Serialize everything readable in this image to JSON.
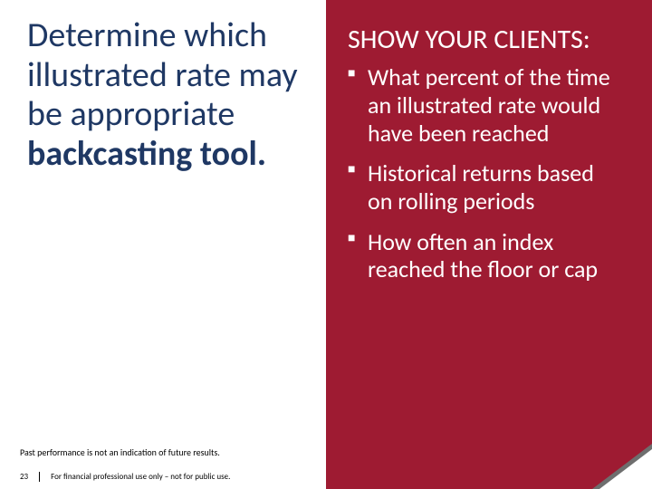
{
  "colors": {
    "headline": "#1f3864",
    "panel_bg": "#9e1b32",
    "panel_text": "#ffffff",
    "corner_shadow": "#6e6e6e"
  },
  "left": {
    "headline_plain": "Determine which illustrated rate may be appropriate ",
    "headline_bold": "backcasting tool."
  },
  "right": {
    "title": "SHOW YOUR CLIENTS:",
    "bullets": [
      "What percent of the time an illustrated rate would have been reached",
      "Historical returns based on rolling periods",
      "How often an index reached the floor or cap"
    ]
  },
  "disclaimer": "Past performance is not an indication of future results.",
  "footer": {
    "page": "23",
    "text": "For financial professional use only – not for public use."
  }
}
